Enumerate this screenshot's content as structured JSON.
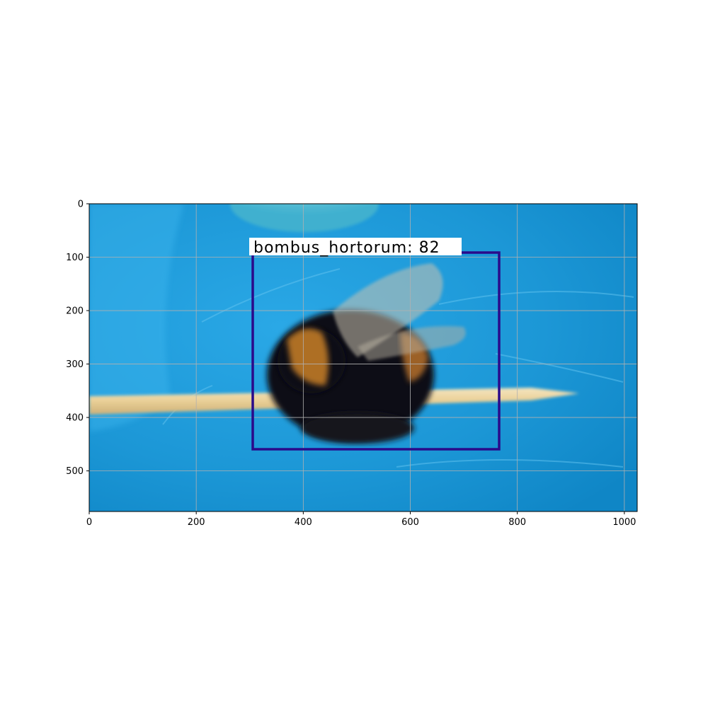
{
  "figure": {
    "axes_type": "image",
    "xlim": [
      0,
      1024
    ],
    "ylim": [
      576,
      0
    ],
    "grid": true,
    "x_ticks": [
      "0",
      "200",
      "400",
      "600",
      "800",
      "1000"
    ],
    "y_ticks": [
      "0",
      "100",
      "200",
      "300",
      "400",
      "500"
    ]
  },
  "detection": {
    "label": "bombus_hortorum: 82",
    "class": "bombus_hortorum",
    "score": 82,
    "box_color": "#2a0a8a"
  },
  "photo": {
    "background_color": "#1e9ad8",
    "subject": "bumblebee-on-toothpick"
  }
}
